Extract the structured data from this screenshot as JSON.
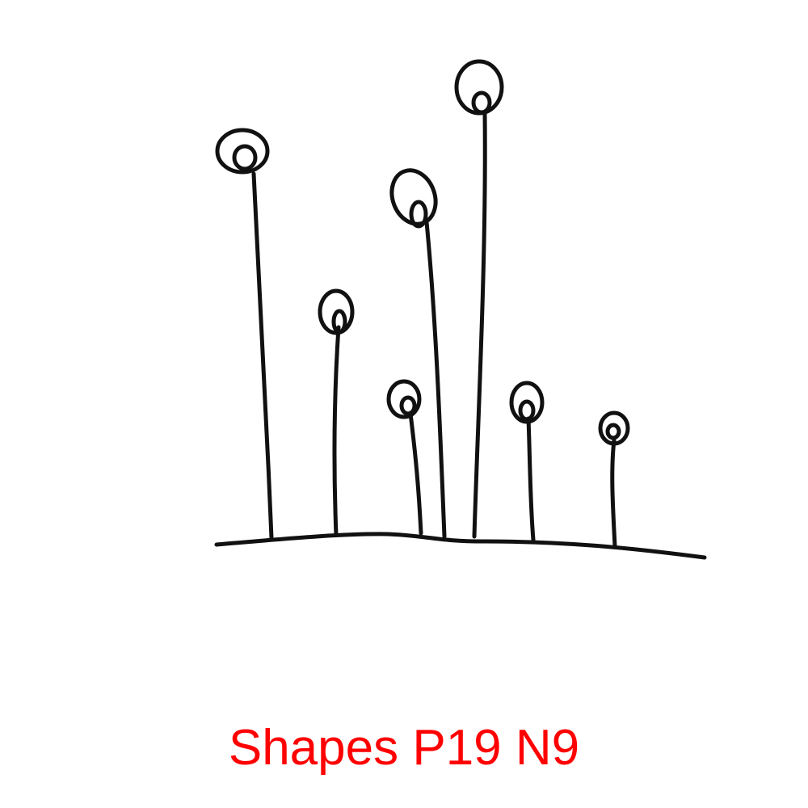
{
  "caption": "Shapes P19 N9"
}
